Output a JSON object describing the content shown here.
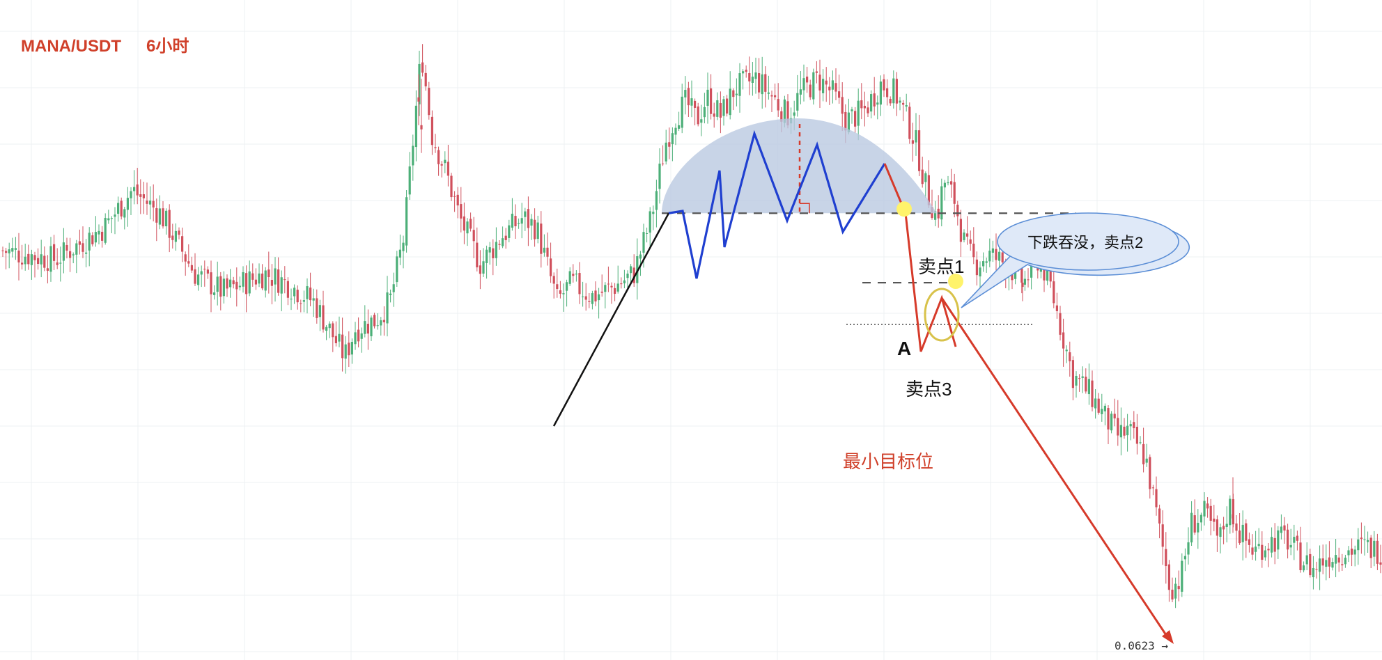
{
  "title": {
    "symbol": "MANA/USDT",
    "timeframe": "6小时"
  },
  "annotations": {
    "sell_point_1": "卖点1",
    "sell_point_2_callout": "下跌吞没，卖点2",
    "sell_point_3": "卖点3",
    "point_a": "A",
    "min_target": "最小目标位",
    "price_label": "0.0623 →"
  },
  "colors": {
    "up": "#4caf78",
    "down": "#d0505c",
    "title": "#d0402a",
    "trend_blue": "#1f3fd0",
    "trend_red": "#d63a2a",
    "dome_fill": "#b8c8e0",
    "callout_fill": "#dfe9f8",
    "callout_stroke": "#5b8ed6",
    "sell_marker": "#fff36b",
    "ring": "#d8c24a",
    "grid": "#eef0f3"
  },
  "chart_data": {
    "type": "candlestick",
    "symbol": "MANA/USDT",
    "interval": "6h",
    "shown_price_label": 0.0623,
    "grid": true,
    "price_path": [
      [
        0,
        0.1045
      ],
      [
        80,
        0.1035
      ],
      [
        150,
        0.107
      ],
      [
        190,
        0.111
      ],
      [
        230,
        0.1085
      ],
      [
        280,
        0.102
      ],
      [
        320,
        0.1
      ],
      [
        350,
        0.101
      ],
      [
        380,
        0.102
      ],
      [
        410,
        0.101
      ],
      [
        450,
        0.099
      ],
      [
        480,
        0.095
      ],
      [
        495,
        0.093
      ],
      [
        510,
        0.096
      ],
      [
        540,
        0.097
      ],
      [
        560,
        0.099
      ],
      [
        580,
        0.106
      ],
      [
        595,
        0.118
      ],
      [
        605,
        0.126
      ],
      [
        620,
        0.117
      ],
      [
        640,
        0.113
      ],
      [
        660,
        0.108
      ],
      [
        690,
        0.103
      ],
      [
        720,
        0.106
      ],
      [
        750,
        0.108
      ],
      [
        770,
        0.107
      ],
      [
        785,
        0.103
      ],
      [
        800,
        0.099
      ],
      [
        820,
        0.101
      ],
      [
        850,
        0.0995
      ],
      [
        880,
        0.1005
      ],
      [
        910,
        0.102
      ],
      [
        935,
        0.108
      ],
      [
        955,
        0.116
      ],
      [
        970,
        0.119
      ],
      [
        985,
        0.1205
      ],
      [
        1000,
        0.1185
      ],
      [
        1015,
        0.121
      ],
      [
        1035,
        0.119
      ],
      [
        1055,
        0.122
      ],
      [
        1085,
        0.123
      ],
      [
        1110,
        0.121
      ],
      [
        1130,
        0.119
      ],
      [
        1150,
        0.1215
      ],
      [
        1175,
        0.123
      ],
      [
        1195,
        0.1215
      ],
      [
        1215,
        0.1185
      ],
      [
        1240,
        0.1195
      ],
      [
        1265,
        0.1225
      ],
      [
        1285,
        0.1215
      ],
      [
        1300,
        0.119
      ],
      [
        1315,
        0.116
      ],
      [
        1330,
        0.111
      ],
      [
        1345,
        0.108
      ],
      [
        1355,
        0.112
      ],
      [
        1370,
        0.11
      ],
      [
        1385,
        0.105
      ],
      [
        1400,
        0.103
      ],
      [
        1420,
        0.104
      ],
      [
        1445,
        0.103
      ],
      [
        1470,
        0.101
      ],
      [
        1490,
        0.1035
      ],
      [
        1505,
        0.1015
      ],
      [
        1520,
        0.097
      ],
      [
        1540,
        0.091
      ],
      [
        1565,
        0.089
      ],
      [
        1590,
        0.086
      ],
      [
        1605,
        0.0845
      ],
      [
        1620,
        0.085
      ],
      [
        1645,
        0.082
      ],
      [
        1665,
        0.074
      ],
      [
        1680,
        0.068
      ],
      [
        1695,
        0.069
      ],
      [
        1710,
        0.075
      ],
      [
        1730,
        0.076
      ],
      [
        1750,
        0.073
      ],
      [
        1765,
        0.077
      ],
      [
        1780,
        0.074
      ],
      [
        1800,
        0.072
      ],
      [
        1820,
        0.073
      ],
      [
        1845,
        0.0735
      ],
      [
        1865,
        0.0715
      ],
      [
        1885,
        0.07
      ],
      [
        1905,
        0.0715
      ],
      [
        1930,
        0.072
      ],
      [
        1960,
        0.0725
      ],
      [
        1984,
        0.072
      ]
    ],
    "neckline_price": 0.1085,
    "point_a_price": 0.101,
    "min_target_price": 0.0965,
    "final_target_price": 0.0623
  }
}
